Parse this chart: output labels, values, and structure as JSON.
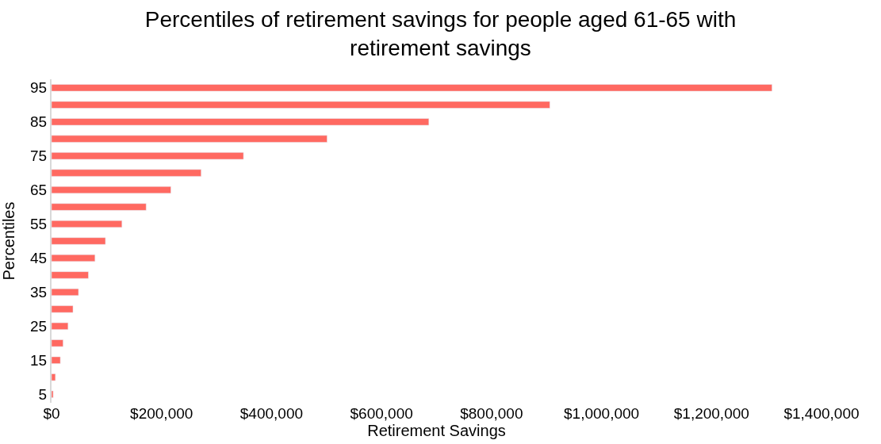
{
  "chart_data": {
    "type": "bar",
    "orientation": "horizontal",
    "title": "Percentiles of retirement savings for people aged 61-65 with retirement savings",
    "xlabel": "Retirement Savings",
    "ylabel": "Percentiles",
    "categories": [
      "95",
      null,
      "85",
      null,
      "75",
      null,
      "65",
      null,
      "55",
      null,
      "45",
      null,
      "35",
      null,
      "25",
      null,
      "15",
      null,
      "5"
    ],
    "values": [
      1310000,
      906000,
      686000,
      501000,
      349000,
      272000,
      217000,
      172000,
      128000,
      98000,
      79000,
      67000,
      49000,
      39000,
      30000,
      21000,
      16000,
      7000,
      3000
    ],
    "color": "#ff6961",
    "xlim": [
      0,
      1400000
    ],
    "xticks": [
      {
        "value": 0,
        "label": "$0"
      },
      {
        "value": 200000,
        "label": "$200,000"
      },
      {
        "value": 400000,
        "label": "$400,000"
      },
      {
        "value": 600000,
        "label": "$600,000"
      },
      {
        "value": 800000,
        "label": "$800,000"
      },
      {
        "value": 1000000,
        "label": "$1,000,000"
      },
      {
        "value": 1200000,
        "label": "$1,200,000"
      },
      {
        "value": 1400000,
        "label": "$1,400,000"
      }
    ],
    "legend": false
  }
}
